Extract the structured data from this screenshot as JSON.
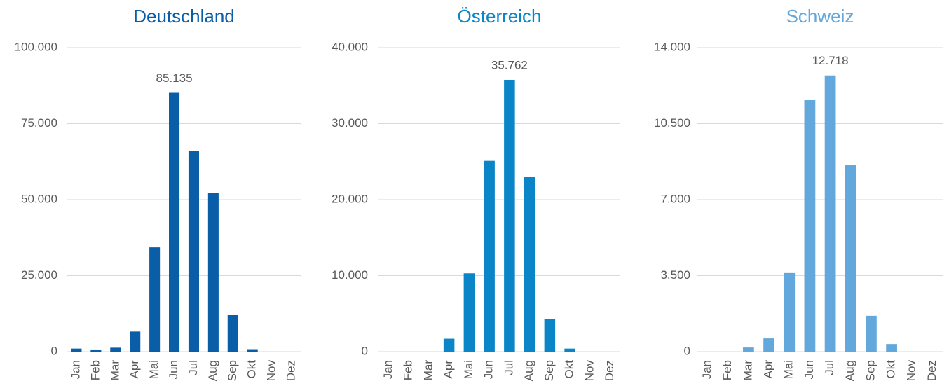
{
  "chart_data": [
    {
      "type": "bar",
      "title": "Deutschland",
      "color": "#0a5ea8",
      "grid": true,
      "categories": [
        "Jan",
        "Feb",
        "Mar",
        "Apr",
        "Mai",
        "Jun",
        "Jul",
        "Aug",
        "Sep",
        "Okt",
        "Nov",
        "Dez"
      ],
      "values": [
        1000,
        700,
        1300,
        6600,
        34300,
        85135,
        65900,
        52300,
        12200,
        800,
        0,
        0
      ],
      "value_labels": [
        null,
        null,
        null,
        null,
        null,
        "85.135",
        null,
        null,
        null,
        null,
        null,
        null
      ],
      "ylim": [
        0,
        100000
      ],
      "yticks": [
        0,
        {
          "value": 25000,
          "label": "25.000"
        },
        {
          "value": 50000,
          "label": "50.000"
        },
        {
          "value": 75000,
          "label": "75.000"
        },
        {
          "value": 100000,
          "label": "100.000"
        }
      ]
    },
    {
      "type": "bar",
      "title": "Österreich",
      "color": "#0a86c8",
      "grid": true,
      "categories": [
        "Jan",
        "Feb",
        "Mar",
        "Apr",
        "Mai",
        "Jun",
        "Jul",
        "Aug",
        "Sep",
        "Okt",
        "Nov",
        "Dez"
      ],
      "values": [
        0,
        0,
        0,
        1700,
        10300,
        25100,
        35762,
        23000,
        4300,
        400,
        0,
        0
      ],
      "value_labels": [
        null,
        null,
        null,
        null,
        null,
        null,
        "35.762",
        null,
        null,
        null,
        null,
        null
      ],
      "ylim": [
        0,
        40000
      ],
      "yticks": [
        0,
        {
          "value": 10000,
          "label": "10.000"
        },
        {
          "value": 20000,
          "label": "20.000"
        },
        {
          "value": 30000,
          "label": "30.000"
        },
        {
          "value": 40000,
          "label": "40.000"
        }
      ]
    },
    {
      "type": "bar",
      "title": "Schweiz",
      "color": "#63a8dc",
      "grid": true,
      "categories": [
        "Jan",
        "Feb",
        "Mar",
        "Apr",
        "Mai",
        "Jun",
        "Jul",
        "Aug",
        "Sep",
        "Okt",
        "Nov",
        "Dez"
      ],
      "values": [
        0,
        0,
        190,
        610,
        3650,
        11580,
        12718,
        8580,
        1650,
        350,
        0,
        0
      ],
      "value_labels": [
        null,
        null,
        null,
        null,
        null,
        null,
        "12.718",
        null,
        null,
        null,
        null,
        null
      ],
      "ylim": [
        0,
        14000
      ],
      "yticks": [
        0,
        {
          "value": 3500,
          "label": "3.500"
        },
        {
          "value": 7000,
          "label": "7.000"
        },
        {
          "value": 10500,
          "label": "10.500"
        },
        {
          "value": 14000,
          "label": "14.000"
        }
      ]
    }
  ]
}
